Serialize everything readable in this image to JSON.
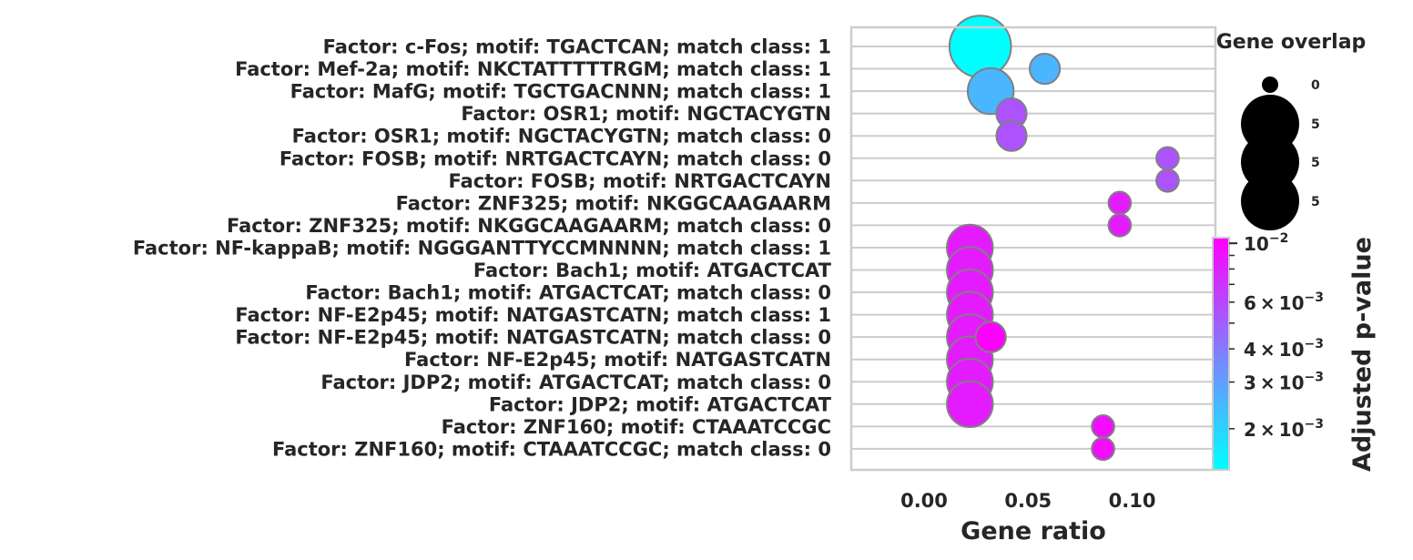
{
  "chart_data": {
    "type": "scatter",
    "title": "",
    "xlabel": "Gene ratio",
    "ylabel": "",
    "xlim": [
      -0.035,
      0.14
    ],
    "xticks": [
      "0.00",
      "0.05",
      "0.10"
    ],
    "xtick_values": [
      0.0,
      0.05,
      0.1
    ],
    "grid": "horizontal",
    "categories": [
      "Factor: c-Fos; motif: TGACTCAN; match class: 1",
      "Factor: Mef-2a; motif: NKCTATTTTTRGM; match class: 1",
      "Factor: MafG; motif: TGCTGACNNN; match class: 1",
      "Factor: OSR1; motif: NGCTACYGTN",
      "Factor: OSR1; motif: NGCTACYGTN; match class: 0",
      "Factor: FOSB; motif: NRTGACTCAYN; match class: 0",
      "Factor: FOSB; motif: NRTGACTCAYN",
      "Factor: ZNF325; motif: NKGGCAAGAARM",
      "Factor: ZNF325; motif: NKGGCAAGAARM; match class: 0",
      "Factor: NF-kappaB; motif: NGGGANTTYCCMNNNN; match class: 1",
      "Factor: Bach1; motif: ATGACTCAT",
      "Factor: Bach1; motif: ATGACTCAT; match class: 0",
      "Factor: NF-E2p45; motif: NATGASTCATN; match class: 1",
      "Factor: NF-E2p45; motif: NATGASTCATN; match class: 0",
      "Factor: NF-E2p45; motif: NATGASTCATN",
      "Factor: JDP2; motif: ATGACTCAT; match class: 0",
      "Factor: JDP2; motif: ATGACTCAT",
      "Factor: ZNF160; motif: CTAAATCCGC",
      "Factor: ZNF160; motif: CTAAATCCGC; match class: 0"
    ],
    "points": [
      {
        "row": 0,
        "gene_ratio": 0.027,
        "gene_overlap": 6,
        "adj_pvalue": 0.0014
      },
      {
        "row": 1,
        "gene_ratio": 0.058,
        "gene_overlap": 2,
        "adj_pvalue": 0.0025
      },
      {
        "row": 2,
        "gene_ratio": 0.032,
        "gene_overlap": 4,
        "adj_pvalue": 0.0025
      },
      {
        "row": 3,
        "gene_ratio": 0.042,
        "gene_overlap": 2,
        "adj_pvalue": 0.0055
      },
      {
        "row": 4,
        "gene_ratio": 0.042,
        "gene_overlap": 2,
        "adj_pvalue": 0.0055
      },
      {
        "row": 5,
        "gene_ratio": 0.117,
        "gene_overlap": 1,
        "adj_pvalue": 0.0055
      },
      {
        "row": 6,
        "gene_ratio": 0.117,
        "gene_overlap": 1,
        "adj_pvalue": 0.0055
      },
      {
        "row": 7,
        "gene_ratio": 0.094,
        "gene_overlap": 1,
        "adj_pvalue": 0.0085
      },
      {
        "row": 8,
        "gene_ratio": 0.094,
        "gene_overlap": 1,
        "adj_pvalue": 0.0085
      },
      {
        "row": 9,
        "gene_ratio": 0.022,
        "gene_overlap": 4,
        "adj_pvalue": 0.0085
      },
      {
        "row": 10,
        "gene_ratio": 0.022,
        "gene_overlap": 4,
        "adj_pvalue": 0.0085
      },
      {
        "row": 11,
        "gene_ratio": 0.022,
        "gene_overlap": 4,
        "adj_pvalue": 0.0085
      },
      {
        "row": 12,
        "gene_ratio": 0.022,
        "gene_overlap": 4,
        "adj_pvalue": 0.0085
      },
      {
        "row": 13,
        "gene_ratio": 0.022,
        "gene_overlap": 4,
        "adj_pvalue": 0.0085
      },
      {
        "row": 13,
        "gene_ratio": 0.032,
        "gene_overlap": 2,
        "adj_pvalue": 0.0105
      },
      {
        "row": 14,
        "gene_ratio": 0.022,
        "gene_overlap": 4,
        "adj_pvalue": 0.0085
      },
      {
        "row": 15,
        "gene_ratio": 0.022,
        "gene_overlap": 4,
        "adj_pvalue": 0.0085
      },
      {
        "row": 16,
        "gene_ratio": 0.022,
        "gene_overlap": 4,
        "adj_pvalue": 0.0085
      },
      {
        "row": 17,
        "gene_ratio": 0.086,
        "gene_overlap": 1,
        "adj_pvalue": 0.0095
      },
      {
        "row": 18,
        "gene_ratio": 0.086,
        "gene_overlap": 1,
        "adj_pvalue": 0.0095
      }
    ],
    "size_legend": {
      "title": "Gene overlap",
      "entries": [
        {
          "label": "0",
          "value": 1
        },
        {
          "label": "5",
          "value": 5
        },
        {
          "label": "5",
          "value": 5
        },
        {
          "label": "5",
          "value": 5
        }
      ]
    },
    "colorbar": {
      "label": "Adjusted p-value",
      "scale": "log",
      "range": [
        0.0014,
        0.0105
      ],
      "colormap_start": "#00ffff",
      "colormap_end": "#ff00ff",
      "major_ticks": [
        {
          "value": 0.01,
          "base": "10",
          "exp": "−2"
        }
      ],
      "minor_ticks_labeled": [
        {
          "value": 0.006,
          "mant": "6",
          "base": "10",
          "exp": "−3"
        },
        {
          "value": 0.004,
          "mant": "4",
          "base": "10",
          "exp": "−3"
        },
        {
          "value": 0.003,
          "mant": "3",
          "base": "10",
          "exp": "−3"
        },
        {
          "value": 0.002,
          "mant": "2",
          "base": "10",
          "exp": "−3"
        }
      ],
      "minor_ticks_unlabeled": [
        0.009,
        0.008,
        0.007,
        0.005
      ]
    },
    "colors": {
      "marker_edge": "#808080",
      "grid": "#cccccc",
      "frame": "#cccccc",
      "text": "#262626"
    }
  }
}
